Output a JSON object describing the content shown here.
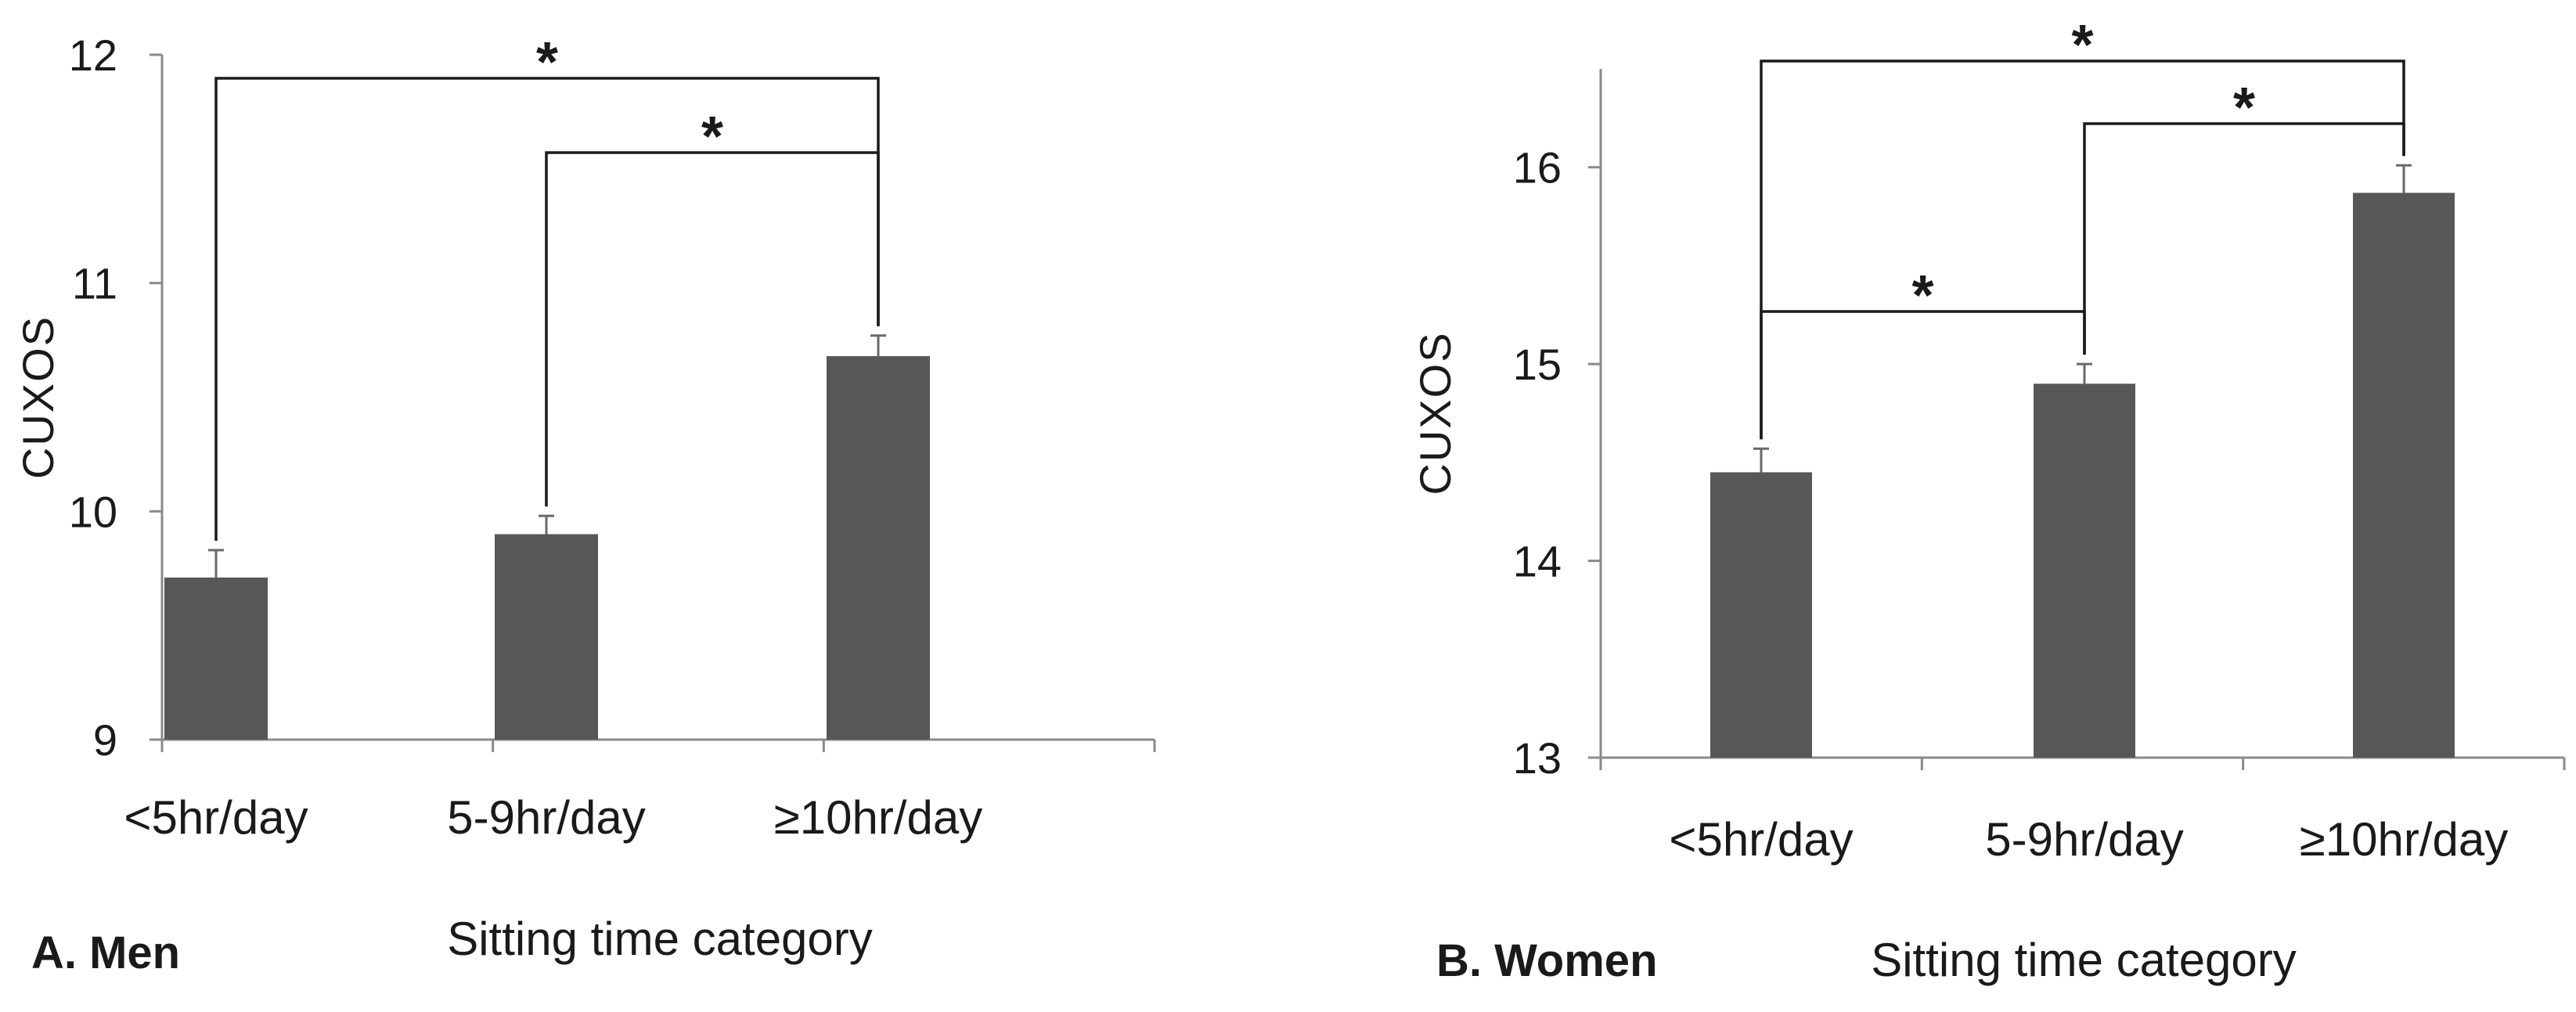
{
  "chart_data": [
    {
      "type": "bar",
      "panel_label": "A. Men",
      "title": "",
      "xlabel": "Sitting time category",
      "ylabel": "CUXOS",
      "categories": [
        "<5hr/day",
        "5-9hr/day",
        "≥10hr/day"
      ],
      "values": [
        9.71,
        9.9,
        10.68
      ],
      "error": [
        0.12,
        0.08,
        0.09
      ],
      "ylim": [
        9,
        12
      ],
      "yticks": [
        9,
        10,
        11,
        12
      ],
      "grid": false,
      "annotations": [
        {
          "from": 0,
          "to": 2,
          "label": "*"
        },
        {
          "from": 1,
          "to": 2,
          "label": "*"
        }
      ]
    },
    {
      "type": "bar",
      "panel_label": "B. Women",
      "title": "",
      "xlabel": "Sitting time category",
      "ylabel": "CUXOS",
      "categories": [
        "<5hr/day",
        "5-9hr/day",
        "≥10hr/day"
      ],
      "values": [
        14.45,
        14.9,
        15.87
      ],
      "error": [
        0.12,
        0.1,
        0.14
      ],
      "ylim": [
        13,
        16.5
      ],
      "yticks": [
        13,
        14,
        15,
        16
      ],
      "grid": false,
      "annotations": [
        {
          "from": 0,
          "to": 2,
          "label": "*"
        },
        {
          "from": 1,
          "to": 2,
          "label": "*"
        },
        {
          "from": 0,
          "to": 1,
          "label": "*"
        }
      ]
    }
  ],
  "colors": {
    "bar": "#575757",
    "axis": "#8a8a8a",
    "text": "#1a1a1a"
  }
}
